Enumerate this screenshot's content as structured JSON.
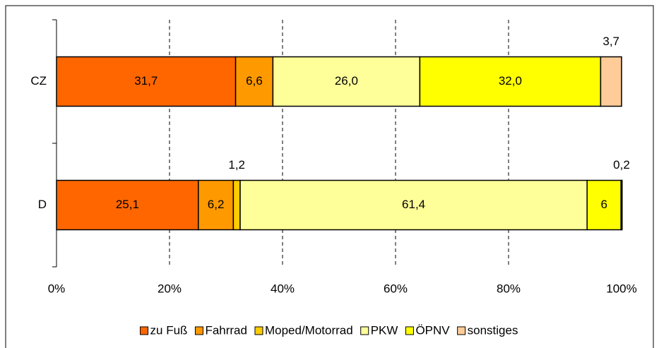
{
  "chart_data": {
    "type": "stacked-barh",
    "categories": [
      "CZ",
      "D"
    ],
    "series": [
      {
        "name": "zu Fuß",
        "color": "#FF6600",
        "values": [
          31.7,
          25.1
        ],
        "value_labels": [
          "31,7",
          "25,1"
        ]
      },
      {
        "name": "Fahrrad",
        "color": "#FF9900",
        "values": [
          6.6,
          6.2
        ],
        "value_labels": [
          "6,6",
          "6,2"
        ]
      },
      {
        "name": "Moped/Motorrad",
        "color": "#FFCC00",
        "values": [
          0,
          1.2
        ],
        "value_labels": [
          null,
          "1,2"
        ]
      },
      {
        "name": "PKW",
        "color": "#FFFF99",
        "values": [
          26.0,
          61.4
        ],
        "value_labels": [
          "26,0",
          "61,4"
        ]
      },
      {
        "name": "ÖPNV",
        "color": "#FFFF00",
        "values": [
          32.0,
          6
        ],
        "value_labels": [
          "32,0",
          "6"
        ]
      },
      {
        "name": "sonstiges",
        "color": "#FFCC99",
        "values": [
          3.7,
          0.2
        ],
        "value_labels": [
          "3,7",
          "0,2"
        ]
      }
    ],
    "xlim": [
      0,
      100
    ],
    "xticks": [
      {
        "value": 0,
        "label": "0%"
      },
      {
        "value": 20,
        "label": "20%"
      },
      {
        "value": 40,
        "label": "40%"
      },
      {
        "value": 60,
        "label": "60%"
      },
      {
        "value": 80,
        "label": "80%"
      },
      {
        "value": 100,
        "label": "100%"
      }
    ],
    "grid": true,
    "legend": "bottom"
  }
}
